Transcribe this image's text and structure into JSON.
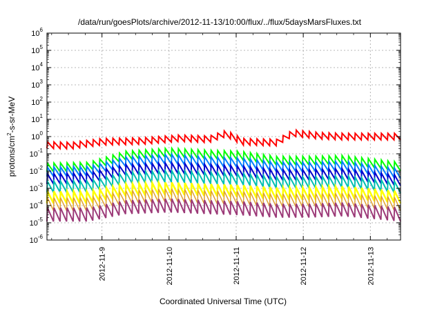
{
  "chart_data": {
    "type": "line",
    "title": "/data/run/goesPlots/archive/2012-11-13/10:00/flux/../flux/5daysMarsFluxes.txt",
    "xlabel": "Coordinated Universal Time (UTC)",
    "ylabel_parts": [
      "protons/cm",
      "2",
      "-s-sr-MeV"
    ],
    "yscale": "log",
    "ylim": [
      1e-06,
      1000000.0
    ],
    "ytick_exponents": [
      -6,
      -5,
      -4,
      -3,
      -2,
      -1,
      0,
      1,
      2,
      3,
      4,
      5,
      6
    ],
    "ytick_base": "10",
    "xlim": [
      -0.82,
      4.45
    ],
    "xtick_labels": [
      "2012-11-9",
      "2012-11-10",
      "2012-11-11",
      "2012-11-12",
      "2012-11-13"
    ],
    "grid": true,
    "legend": "none",
    "n_cycles": 54,
    "series": [
      {
        "color": "#ff0000",
        "base": [
          [
            -0.82,
            0.32
          ],
          [
            -0.45,
            0.3
          ],
          [
            0,
            0.5
          ],
          [
            0.6,
            0.55
          ],
          [
            1.15,
            0.8
          ],
          [
            1.6,
            0.7
          ],
          [
            1.85,
            1.5
          ],
          [
            2.1,
            0.5
          ],
          [
            2.6,
            0.45
          ],
          [
            2.85,
            1.6
          ],
          [
            3.25,
            1.1
          ],
          [
            3.6,
            1.0
          ],
          [
            4.45,
            1.0
          ]
        ],
        "amp": 0.38,
        "width": 2
      },
      {
        "color": "#00ff00",
        "base": [
          [
            -0.82,
            0.016
          ],
          [
            -0.2,
            0.018
          ],
          [
            0.35,
            0.08
          ],
          [
            1.0,
            0.12
          ],
          [
            1.6,
            0.09
          ],
          [
            2.05,
            0.08
          ],
          [
            2.6,
            0.04
          ],
          [
            3.05,
            0.04
          ],
          [
            3.6,
            0.045
          ],
          [
            4.45,
            0.018
          ]
        ],
        "amp": 0.5,
        "width": 2
      },
      {
        "color": "#0080ff",
        "base": [
          [
            -0.82,
            0.009
          ],
          [
            -0.2,
            0.01
          ],
          [
            0.35,
            0.035
          ],
          [
            1.0,
            0.05
          ],
          [
            1.6,
            0.035
          ],
          [
            2.05,
            0.03
          ],
          [
            2.6,
            0.018
          ],
          [
            3.05,
            0.017
          ],
          [
            3.6,
            0.02
          ],
          [
            4.45,
            0.007
          ]
        ],
        "amp": 0.55,
        "width": 2
      },
      {
        "color": "#0000cc",
        "base": [
          [
            -0.82,
            0.0035
          ],
          [
            -0.2,
            0.004
          ],
          [
            0.35,
            0.012
          ],
          [
            1.0,
            0.015
          ],
          [
            1.6,
            0.012
          ],
          [
            2.05,
            0.01
          ],
          [
            2.6,
            0.006
          ],
          [
            3.05,
            0.006
          ],
          [
            3.6,
            0.007
          ],
          [
            4.45,
            0.0028
          ]
        ],
        "amp": 0.6,
        "width": 2
      },
      {
        "color": "#00bfb0",
        "base": [
          [
            -0.82,
            0.0012
          ],
          [
            -0.2,
            0.0013
          ],
          [
            0.35,
            0.004
          ],
          [
            1.0,
            0.005
          ],
          [
            1.6,
            0.004
          ],
          [
            2.05,
            0.0035
          ],
          [
            2.6,
            0.0022
          ],
          [
            3.05,
            0.0022
          ],
          [
            3.6,
            0.0025
          ],
          [
            4.45,
            0.0011
          ]
        ],
        "amp": 0.65,
        "width": 2
      },
      {
        "color": "#ffff00",
        "base": [
          [
            -0.82,
            0.0003
          ],
          [
            -0.2,
            0.0003
          ],
          [
            0.35,
            0.0008
          ],
          [
            1.0,
            0.001
          ],
          [
            1.6,
            0.0008
          ],
          [
            2.05,
            0.0007
          ],
          [
            2.6,
            0.0005
          ],
          [
            3.05,
            0.0005
          ],
          [
            3.6,
            0.0006
          ],
          [
            4.45,
            0.0003
          ]
        ],
        "amp": 0.7,
        "width": 2.5
      },
      {
        "color": "#e0a030",
        "base": [
          [
            -0.82,
            0.00012
          ],
          [
            -0.2,
            0.00012
          ],
          [
            0.35,
            0.0003
          ],
          [
            1.0,
            0.0004
          ],
          [
            1.6,
            0.0003
          ],
          [
            2.05,
            0.00028
          ],
          [
            2.6,
            0.0002
          ],
          [
            3.05,
            0.0002
          ],
          [
            3.6,
            0.00022
          ],
          [
            4.45,
            0.00012
          ]
        ],
        "amp": 0.75,
        "width": 1.5
      },
      {
        "color": "#9c3a78",
        "base": [
          [
            -0.82,
            3e-05
          ],
          [
            -0.2,
            3e-05
          ],
          [
            0.35,
            8e-05
          ],
          [
            1.0,
            0.0001
          ],
          [
            1.6,
            8e-05
          ],
          [
            2.05,
            7e-05
          ],
          [
            2.6,
            5e-05
          ],
          [
            3.05,
            5e-05
          ],
          [
            3.6,
            6e-05
          ],
          [
            4.45,
            3e-05
          ]
        ],
        "amp": 0.8,
        "width": 2
      }
    ]
  }
}
